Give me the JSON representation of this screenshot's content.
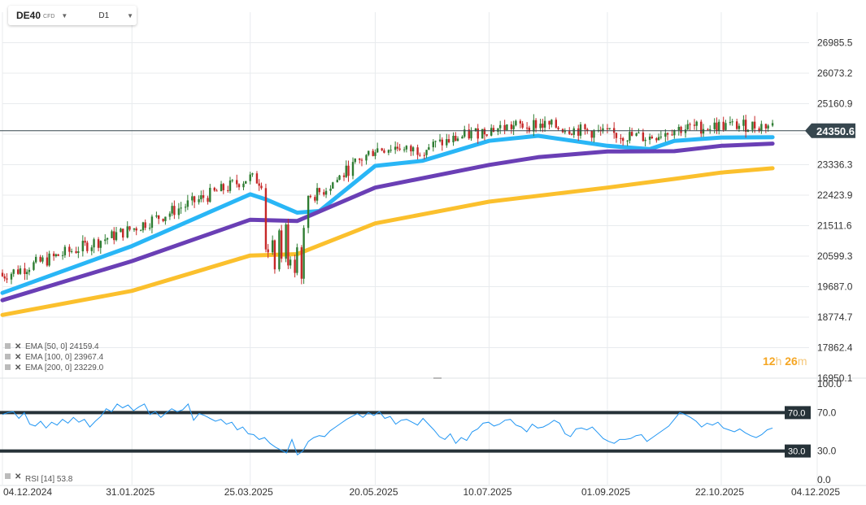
{
  "header": {
    "symbol": "DE40",
    "symbol_sub": "CFD",
    "timeframe": "D1"
  },
  "timer": {
    "hours": "12",
    "h_unit": "h",
    "minutes": "26",
    "m_unit": "m"
  },
  "colors": {
    "up_candle": "#2e7d32",
    "down_candle": "#c62828",
    "ema50": "#29b6f6",
    "ema100": "#6a3fb5",
    "ema200": "#fbc02d",
    "rsi": "#2196f3",
    "last_price_tag": "#37474f"
  },
  "chart_data": {
    "type": "line",
    "title": "",
    "price_axis": {
      "ticks": [
        "26985.5",
        "26073.2",
        "25160.9",
        "24248.6",
        "23336.3",
        "22423.9",
        "21511.6",
        "20599.3",
        "19687.0",
        "18774.7",
        "17862.4",
        "16950.1"
      ],
      "ylim": [
        16950.1,
        27898
      ]
    },
    "last_price": "24350.6",
    "x_axis": {
      "ticks": [
        "04.12.2024",
        "31.01.2025",
        "25.03.2025",
        "20.05.2025",
        "10.07.2025",
        "01.09.2025",
        "22.10.2025",
        "04.12.2025"
      ]
    },
    "series": [
      {
        "name": "EMA [50, 0]",
        "last": "24159.4",
        "points": [
          [
            "04.12.2024",
            19500
          ],
          [
            "31.01.2025",
            20900
          ],
          [
            "25.03.2025",
            22450
          ],
          [
            "01.04.2025",
            22300
          ],
          [
            "15.04.2025",
            21900
          ],
          [
            "25.04.2025",
            21950
          ],
          [
            "20.05.2025",
            23300
          ],
          [
            "10.06.2025",
            23450
          ],
          [
            "10.07.2025",
            24050
          ],
          [
            "01.08.2025",
            24200
          ],
          [
            "01.09.2025",
            23900
          ],
          [
            "20.09.2025",
            23800
          ],
          [
            "01.10.2025",
            24050
          ],
          [
            "22.10.2025",
            24150
          ],
          [
            "14.11.2025",
            24159
          ]
        ]
      },
      {
        "name": "EMA [100, 0]",
        "last": "23967.4",
        "points": [
          [
            "04.12.2024",
            19280
          ],
          [
            "31.01.2025",
            20450
          ],
          [
            "25.03.2025",
            21690
          ],
          [
            "15.04.2025",
            21650
          ],
          [
            "20.05.2025",
            22650
          ],
          [
            "10.07.2025",
            23330
          ],
          [
            "01.08.2025",
            23560
          ],
          [
            "01.09.2025",
            23730
          ],
          [
            "01.10.2025",
            23740
          ],
          [
            "22.10.2025",
            23900
          ],
          [
            "14.11.2025",
            23967
          ]
        ]
      },
      {
        "name": "EMA [200, 0]",
        "last": "23229.0",
        "points": [
          [
            "04.12.2024",
            18840
          ],
          [
            "31.01.2025",
            19560
          ],
          [
            "25.03.2025",
            20620
          ],
          [
            "15.04.2025",
            20660
          ],
          [
            "20.05.2025",
            21580
          ],
          [
            "10.07.2025",
            22230
          ],
          [
            "01.09.2025",
            22650
          ],
          [
            "01.10.2025",
            22910
          ],
          [
            "22.10.2025",
            23100
          ],
          [
            "14.11.2025",
            23229
          ]
        ]
      }
    ],
    "rsi": {
      "name": "RSI [14]",
      "last": "53.8",
      "ticks": [
        "100.0",
        "70.0",
        "30.0",
        "0.0"
      ],
      "levels": [
        "70.0",
        "30.0"
      ],
      "values": [
        68,
        70,
        71,
        64,
        70,
        58,
        56,
        61,
        54,
        60,
        57,
        63,
        59,
        65,
        60,
        63,
        55,
        61,
        66,
        74,
        71,
        79,
        75,
        78,
        72,
        76,
        79,
        68,
        71,
        65,
        70,
        74,
        71,
        73,
        79,
        62,
        69,
        67,
        64,
        61,
        63,
        58,
        60,
        52,
        55,
        48,
        47,
        42,
        44,
        38,
        34,
        31,
        28,
        42,
        26,
        30,
        40,
        44,
        46,
        45,
        51,
        55,
        59,
        63,
        66,
        69,
        65,
        70,
        67,
        71,
        64,
        66,
        58,
        62,
        63,
        60,
        57,
        64,
        58,
        52,
        45,
        42,
        48,
        38,
        44,
        41,
        50,
        53,
        59,
        60,
        56,
        58,
        62,
        63,
        57,
        55,
        50,
        58,
        54,
        55,
        58,
        62,
        59,
        48,
        45,
        53,
        54,
        52,
        55,
        49,
        43,
        40,
        38,
        42,
        42,
        43,
        46,
        47,
        40,
        44,
        48,
        52,
        56,
        63,
        70,
        68,
        65,
        61,
        55,
        59,
        57,
        60,
        54,
        52,
        50,
        53,
        49,
        46,
        44,
        47,
        52,
        54
      ],
      "ylim": [
        0,
        100
      ]
    },
    "legend": [
      {
        "label": "EMA [50, 0]",
        "value": "24159.4"
      },
      {
        "label": "EMA [100, 0]",
        "value": "23967.4"
      },
      {
        "label": "EMA [200, 0]",
        "value": "23229.0"
      }
    ]
  }
}
